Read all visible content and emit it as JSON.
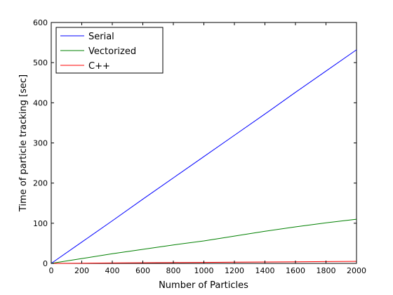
{
  "chart_data": {
    "type": "line",
    "title": "",
    "xlabel": "Number of Particles",
    "ylabel": "Time of particle tracking [sec]",
    "xlim": [
      0,
      2000
    ],
    "ylim": [
      0,
      600
    ],
    "xticks": [
      0,
      200,
      400,
      600,
      800,
      1000,
      1200,
      1400,
      1600,
      1800,
      2000
    ],
    "yticks": [
      0,
      100,
      200,
      300,
      400,
      500,
      600
    ],
    "grid": false,
    "legend_position": "top-left",
    "x": [
      0,
      200,
      400,
      600,
      800,
      1000,
      1200,
      1400,
      1600,
      1800,
      2000
    ],
    "series": [
      {
        "name": "Serial",
        "color": "#0000ff",
        "values": [
          0,
          53,
          106,
          160,
          213,
          266,
          319,
          372,
          426,
          479,
          532
        ]
      },
      {
        "name": "Vectorized",
        "color": "#008000",
        "values": [
          0,
          12,
          24,
          35,
          46,
          56,
          68,
          80,
          91,
          101,
          110
        ]
      },
      {
        "name": "C++",
        "color": "#ff0000",
        "values": [
          0,
          0.5,
          1,
          1.5,
          2,
          2.5,
          3,
          3.5,
          4,
          4.5,
          5
        ]
      }
    ]
  }
}
